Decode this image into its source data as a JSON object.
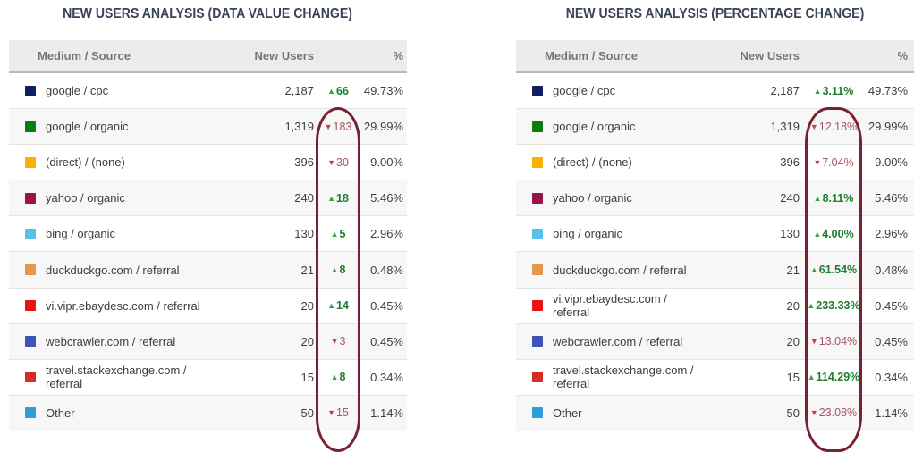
{
  "icons": {
    "up": "▲",
    "down": "▼"
  },
  "colors": {
    "title": "#3a4357",
    "header_bg": "#ececec",
    "header_text": "#73777c",
    "body_text": "#3d3d3d",
    "row_alt_bg": "#f7f7f7",
    "positive": "#1d7e2d",
    "positive_icon": "#3aa23a",
    "negative": "#a65666",
    "negative_icon": "#bf4054",
    "highlight_ellipse": "#7a2130"
  },
  "chart_data": [
    {
      "type": "table",
      "title": "NEW USERS ANALYSIS (DATA VALUE CHANGE)",
      "columns": {
        "source": "Medium / Source",
        "users": "New Users",
        "change": "",
        "pct": "%"
      },
      "annotation": "change column circled in dark red",
      "rows": [
        {
          "source": "google / cpc",
          "swatch": "#101f63",
          "users": "2,187",
          "direction": "up",
          "change": "66",
          "pct": "49.73%"
        },
        {
          "source": "google / organic",
          "swatch": "#0b7d10",
          "users": "1,319",
          "direction": "down",
          "change": "183",
          "pct": "29.99%"
        },
        {
          "source": "(direct) / (none)",
          "swatch": "#fbb004",
          "users": "396",
          "direction": "down",
          "change": "30",
          "pct": "9.00%"
        },
        {
          "source": "yahoo / organic",
          "swatch": "#9c134c",
          "users": "240",
          "direction": "up",
          "change": "18",
          "pct": "5.46%"
        },
        {
          "source": "bing / organic",
          "swatch": "#56c2e9",
          "users": "130",
          "direction": "up",
          "change": "5",
          "pct": "2.96%"
        },
        {
          "source": "duckduckgo.com / referral",
          "swatch": "#e6964e",
          "users": "21",
          "direction": "up",
          "change": "8",
          "pct": "0.48%"
        },
        {
          "source": "vi.vipr.ebaydesc.com / referral",
          "swatch": "#e81212",
          "users": "20",
          "direction": "up",
          "change": "14",
          "pct": "0.45%"
        },
        {
          "source": "webcrawler.com / referral",
          "swatch": "#3e51b5",
          "users": "20",
          "direction": "down",
          "change": "3",
          "pct": "0.45%"
        },
        {
          "source": "travel.stackexchange.com / referral",
          "swatch": "#d62b24",
          "users": "15",
          "direction": "up",
          "change": "8",
          "pct": "0.34%"
        },
        {
          "source": "Other",
          "swatch": "#2d9ed7",
          "users": "50",
          "direction": "down",
          "change": "15",
          "pct": "1.14%"
        }
      ]
    },
    {
      "type": "table",
      "title": "NEW USERS ANALYSIS (PERCENTAGE CHANGE)",
      "columns": {
        "source": "Medium / Source",
        "users": "New Users",
        "change": "",
        "pct": "%"
      },
      "annotation": "change column circled in dark red",
      "rows": [
        {
          "source": "google / cpc",
          "swatch": "#101f63",
          "users": "2,187",
          "direction": "up",
          "change": "3.11%",
          "pct": "49.73%"
        },
        {
          "source": "google / organic",
          "swatch": "#0b7d10",
          "users": "1,319",
          "direction": "down",
          "change": "12.18%",
          "pct": "29.99%"
        },
        {
          "source": "(direct) / (none)",
          "swatch": "#fbb004",
          "users": "396",
          "direction": "down",
          "change": "7.04%",
          "pct": "9.00%"
        },
        {
          "source": "yahoo / organic",
          "swatch": "#9c134c",
          "users": "240",
          "direction": "up",
          "change": "8.11%",
          "pct": "5.46%"
        },
        {
          "source": "bing / organic",
          "swatch": "#56c2e9",
          "users": "130",
          "direction": "up",
          "change": "4.00%",
          "pct": "2.96%"
        },
        {
          "source": "duckduckgo.com / referral",
          "swatch": "#e6964e",
          "users": "21",
          "direction": "up",
          "change": "61.54%",
          "pct": "0.48%"
        },
        {
          "source": "vi.vipr.ebaydesc.com / referral",
          "swatch": "#e81212",
          "users": "20",
          "direction": "up",
          "change": "233.33%",
          "pct": "0.45%"
        },
        {
          "source": "webcrawler.com / referral",
          "swatch": "#3e51b5",
          "users": "20",
          "direction": "down",
          "change": "13.04%",
          "pct": "0.45%"
        },
        {
          "source": "travel.stackexchange.com / referral",
          "swatch": "#d62b24",
          "users": "15",
          "direction": "up",
          "change": "114.29%",
          "pct": "0.34%"
        },
        {
          "source": "Other",
          "swatch": "#2d9ed7",
          "users": "50",
          "direction": "down",
          "change": "23.08%",
          "pct": "1.14%"
        }
      ]
    }
  ]
}
